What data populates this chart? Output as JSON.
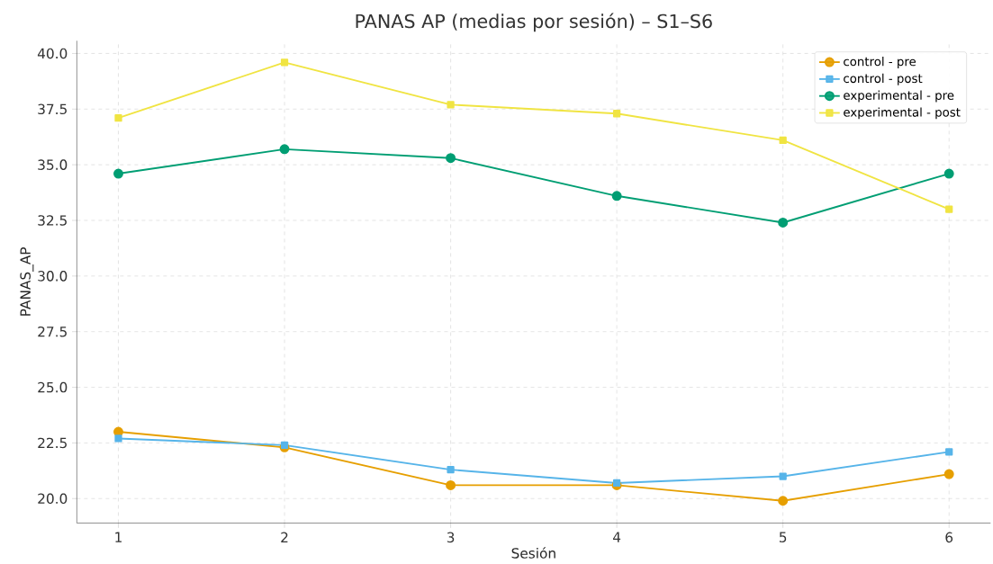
{
  "chart_data": {
    "type": "line",
    "title": "PANAS AP (medias por sesión) – S1–S6",
    "xlabel": "Sesión",
    "ylabel": "PANAS_AP",
    "x": [
      1,
      2,
      3,
      4,
      5,
      6
    ],
    "series": [
      {
        "name": "control - pre",
        "color": "#e69f00",
        "marker": "circle",
        "values": [
          23.0,
          22.3,
          20.6,
          20.6,
          19.9,
          21.1
        ]
      },
      {
        "name": "control - post",
        "color": "#56b4e9",
        "marker": "square",
        "values": [
          22.7,
          22.4,
          21.3,
          20.7,
          21.0,
          22.1
        ]
      },
      {
        "name": "experimental - pre",
        "color": "#009e73",
        "marker": "circle",
        "values": [
          34.6,
          35.7,
          35.3,
          33.6,
          32.4,
          34.6
        ]
      },
      {
        "name": "experimental - post",
        "color": "#f0e442",
        "marker": "square",
        "values": [
          37.1,
          39.6,
          37.7,
          37.3,
          36.1,
          33.0
        ]
      }
    ],
    "xlim": [
      0.75,
      6.25
    ],
    "ylim": [
      18.9,
      40.57
    ],
    "xticks": [
      1,
      2,
      3,
      4,
      5,
      6
    ],
    "yticks": [
      {
        "value": 20,
        "label": "20.0"
      },
      {
        "value": 22.5,
        "label": "22.5"
      },
      {
        "value": 25,
        "label": "25.0"
      },
      {
        "value": 27.5,
        "label": "27.5"
      },
      {
        "value": 30,
        "label": "30.0"
      },
      {
        "value": 32.5,
        "label": "32.5"
      },
      {
        "value": 35,
        "label": "35.0"
      },
      {
        "value": 37.5,
        "label": "37.5"
      },
      {
        "value": 40,
        "label": "40.0"
      }
    ],
    "grid": true,
    "legend": "top right",
    "line_style": "solid"
  }
}
